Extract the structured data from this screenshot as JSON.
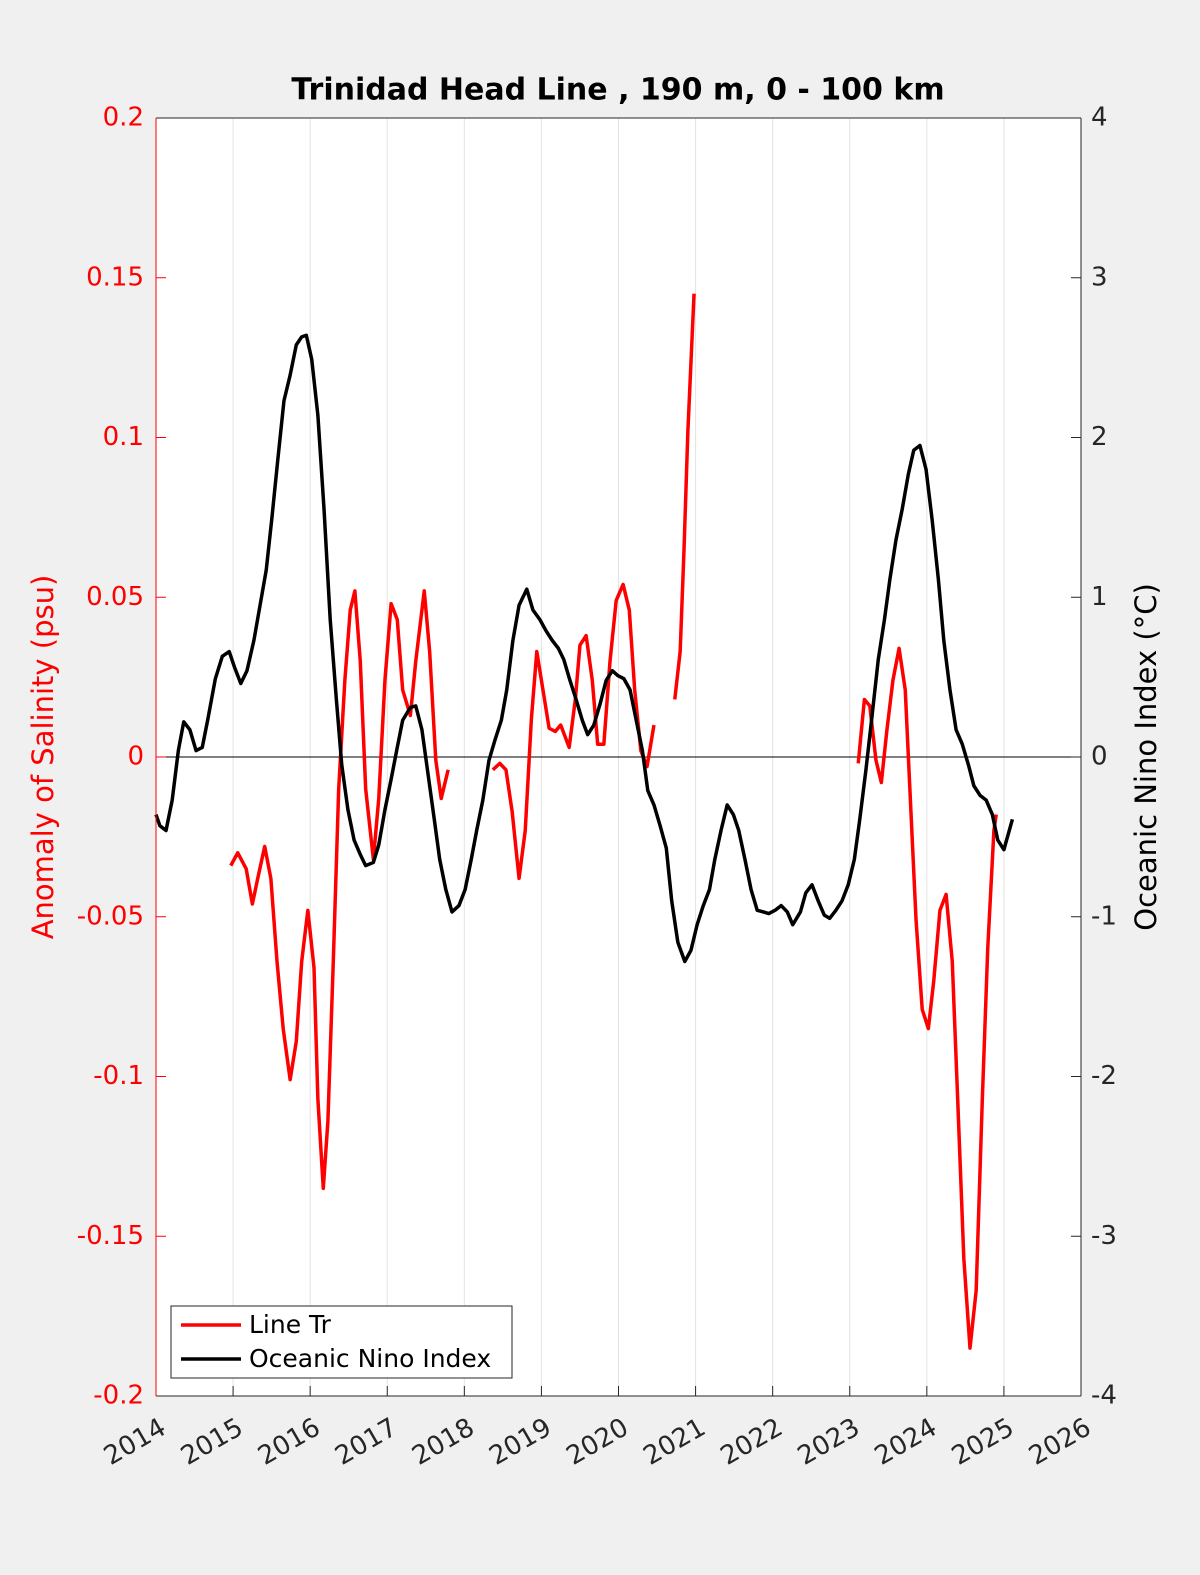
{
  "chart_data": {
    "type": "line",
    "title": "Trinidad Head Line , 190 m, 0 - 100 km",
    "ylabel": "Anomaly of Salinity (psu)",
    "y2label": "Oceanic Nino Index (°C)",
    "xlim": [
      2014,
      2026
    ],
    "xticks": [
      2014,
      2015,
      2016,
      2017,
      2018,
      2019,
      2020,
      2021,
      2022,
      2023,
      2024,
      2025,
      2026
    ],
    "ylim": [
      -0.2,
      0.2
    ],
    "yticks": [
      -0.2,
      -0.15,
      -0.1,
      -0.05,
      0,
      0.05,
      0.1,
      0.15,
      0.2
    ],
    "y2lim": [
      -4,
      4
    ],
    "y2ticks": [
      -4,
      -3,
      -2,
      -1,
      0,
      1,
      2,
      3,
      4
    ],
    "grid": true,
    "legend": "lower left",
    "series": [
      {
        "name": "Line Tr",
        "color": "#ff0000",
        "x": [
          2014.97,
          2015.06,
          2015.17,
          2015.25,
          2015.32,
          2015.41,
          2015.49,
          2015.57,
          2015.65,
          2015.74,
          2015.82,
          2015.89,
          2015.97,
          2016.05,
          2016.1,
          2016.17,
          2016.23,
          2016.3,
          2016.37,
          2016.45,
          2016.52,
          2016.58,
          2016.65,
          2016.72,
          2016.82,
          2016.89,
          2016.97,
          2017.05,
          2017.13,
          2017.2,
          2017.3,
          2017.37,
          2017.48,
          2017.55,
          2017.63,
          2017.7,
          2017.79,
          2018.1,
          2018.37,
          2018.46,
          2018.54,
          2018.62,
          2018.71,
          2018.79,
          2018.87,
          2018.94,
          2019.02,
          2019.1,
          2019.18,
          2019.25,
          2019.36,
          2019.44,
          2019.5,
          2019.58,
          2019.66,
          2019.73,
          2019.81,
          2019.89,
          2019.97,
          2020.06,
          2020.14,
          2020.21,
          2020.29,
          2020.37,
          2020.46,
          2020.6,
          2020.73,
          2020.8,
          2020.85,
          2020.9,
          2020.98,
          2022.0,
          2023.11,
          2023.19,
          2023.26,
          2023.34,
          2023.41,
          2023.48,
          2023.56,
          2023.64,
          2023.72,
          2023.78,
          2023.86,
          2023.94,
          2024.02,
          2024.09,
          2024.17,
          2024.25,
          2024.33,
          2024.4,
          2024.48,
          2024.56,
          2024.64,
          2024.72,
          2024.79,
          2024.87,
          2024.9
        ],
        "values": [
          -0.034,
          -0.03,
          -0.035,
          -0.046,
          -0.038,
          -0.028,
          -0.038,
          -0.064,
          -0.085,
          -0.101,
          -0.089,
          -0.064,
          -0.048,
          -0.066,
          -0.107,
          -0.135,
          -0.114,
          -0.064,
          -0.01,
          0.024,
          0.046,
          0.052,
          0.03,
          -0.01,
          -0.032,
          -0.013,
          0.024,
          0.048,
          0.043,
          0.021,
          0.013,
          0.03,
          0.052,
          0.033,
          -0.001,
          -0.013,
          -0.004,
          null,
          -0.004,
          -0.002,
          -0.004,
          -0.017,
          -0.038,
          -0.023,
          0.012,
          0.033,
          0.021,
          0.009,
          0.008,
          0.01,
          0.003,
          0.018,
          0.035,
          0.038,
          0.024,
          0.004,
          0.004,
          0.03,
          0.049,
          0.054,
          0.046,
          0.021,
          0.002,
          -0.003,
          0.01,
          null,
          0.018,
          0.033,
          0.065,
          0.102,
          0.145,
          null,
          -0.002,
          0.018,
          0.016,
          -0.001,
          -0.008,
          0.008,
          0.024,
          0.034,
          0.021,
          -0.01,
          -0.051,
          -0.079,
          -0.085,
          -0.07,
          -0.048,
          -0.043,
          -0.064,
          -0.107,
          -0.157,
          -0.185,
          -0.167,
          -0.107,
          -0.06,
          -0.023,
          -0.018
        ]
      },
      {
        "name": "Oceanic Nino Index",
        "color": "#000000",
        "axis": "y2",
        "x": [
          2014.0,
          2014.05,
          2014.13,
          2014.21,
          2014.29,
          2014.36,
          2014.44,
          2014.52,
          2014.6,
          2014.67,
          2014.77,
          2014.86,
          2014.95,
          2015.02,
          2015.1,
          2015.18,
          2015.27,
          2015.35,
          2015.43,
          2015.5,
          2015.58,
          2015.66,
          2015.74,
          2015.82,
          2015.89,
          2015.95,
          2016.02,
          2016.1,
          2016.18,
          2016.26,
          2016.34,
          2016.41,
          2016.49,
          2016.57,
          2016.65,
          2016.72,
          2016.82,
          2016.89,
          2016.97,
          2017.05,
          2017.13,
          2017.2,
          2017.3,
          2017.37,
          2017.45,
          2017.53,
          2017.61,
          2017.68,
          2017.76,
          2017.84,
          2017.93,
          2018.01,
          2018.09,
          2018.16,
          2018.24,
          2018.32,
          2018.4,
          2018.48,
          2018.55,
          2018.63,
          2018.71,
          2018.81,
          2018.89,
          2018.98,
          2019.06,
          2019.14,
          2019.22,
          2019.29,
          2019.37,
          2019.45,
          2019.53,
          2019.6,
          2019.68,
          2019.76,
          2019.84,
          2019.92,
          2019.99,
          2020.07,
          2020.15,
          2020.23,
          2020.31,
          2020.38,
          2020.46,
          2020.54,
          2020.62,
          2020.69,
          2020.77,
          2020.86,
          2020.94,
          2021.02,
          2021.1,
          2021.18,
          2021.25,
          2021.33,
          2021.41,
          2021.49,
          2021.56,
          2021.64,
          2021.72,
          2021.8,
          2021.88,
          2021.95,
          2022.03,
          2022.11,
          2022.19,
          2022.26,
          2022.36,
          2022.43,
          2022.51,
          2022.59,
          2022.67,
          2022.74,
          2022.82,
          2022.9,
          2022.98,
          2023.06,
          2023.13,
          2023.21,
          2023.29,
          2023.37,
          2023.45,
          2023.52,
          2023.6,
          2023.68,
          2023.76,
          2023.83,
          2023.91,
          2023.99,
          2024.07,
          2024.15,
          2024.22,
          2024.3,
          2024.38,
          2024.46,
          2024.54,
          2024.61,
          2024.69,
          2024.77,
          2024.85,
          2024.92,
          2025.0,
          2025.11
        ],
        "values": [
          -0.36,
          -0.43,
          -0.46,
          -0.27,
          0.04,
          0.22,
          0.17,
          0.04,
          0.06,
          0.23,
          0.49,
          0.63,
          0.66,
          0.56,
          0.46,
          0.54,
          0.73,
          0.95,
          1.17,
          1.48,
          1.86,
          2.23,
          2.39,
          2.58,
          2.63,
          2.64,
          2.49,
          2.14,
          1.55,
          0.86,
          0.36,
          -0.05,
          -0.33,
          -0.52,
          -0.61,
          -0.68,
          -0.66,
          -0.55,
          -0.33,
          -0.14,
          0.06,
          0.23,
          0.31,
          0.32,
          0.17,
          -0.11,
          -0.39,
          -0.64,
          -0.83,
          -0.97,
          -0.93,
          -0.83,
          -0.64,
          -0.46,
          -0.27,
          -0.02,
          0.11,
          0.23,
          0.42,
          0.73,
          0.95,
          1.05,
          0.92,
          0.86,
          0.79,
          0.73,
          0.68,
          0.61,
          0.48,
          0.36,
          0.23,
          0.14,
          0.2,
          0.33,
          0.48,
          0.54,
          0.51,
          0.49,
          0.42,
          0.23,
          0.04,
          -0.21,
          -0.3,
          -0.43,
          -0.57,
          -0.9,
          -1.16,
          -1.28,
          -1.21,
          -1.05,
          -0.93,
          -0.83,
          -0.64,
          -0.46,
          -0.3,
          -0.36,
          -0.46,
          -0.64,
          -0.83,
          -0.96,
          -0.97,
          -0.98,
          -0.96,
          -0.93,
          -0.97,
          -1.05,
          -0.97,
          -0.85,
          -0.8,
          -0.9,
          -0.99,
          -1.01,
          -0.96,
          -0.9,
          -0.8,
          -0.64,
          -0.39,
          -0.08,
          0.26,
          0.61,
          0.86,
          1.11,
          1.36,
          1.55,
          1.77,
          1.92,
          1.95,
          1.8,
          1.48,
          1.11,
          0.73,
          0.42,
          0.17,
          0.08,
          -0.05,
          -0.18,
          -0.24,
          -0.27,
          -0.36,
          -0.52,
          -0.58,
          -0.39
        ]
      }
    ]
  }
}
